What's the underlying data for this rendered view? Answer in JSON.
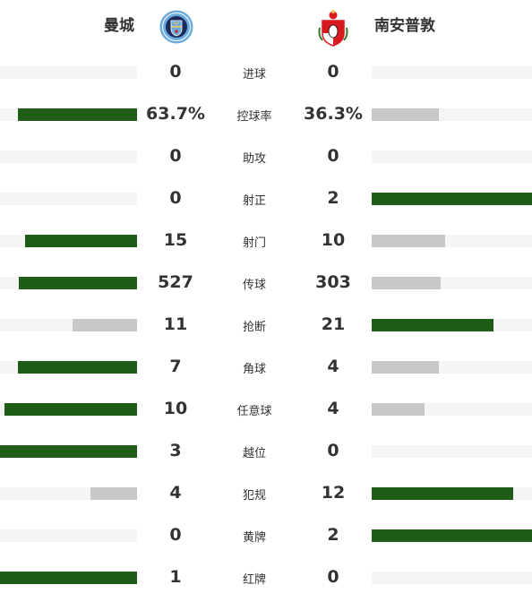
{
  "home": {
    "name": "曼城",
    "crest_icon": "manchester-city-crest-icon",
    "crest_colors": [
      "#6cabdd",
      "#1c2c5b",
      "#ffc659"
    ]
  },
  "away": {
    "name": "南安普敦",
    "crest_icon": "southampton-crest-icon",
    "crest_colors": [
      "#d71920",
      "#ffffff",
      "#130c0e"
    ]
  },
  "colors": {
    "leader_bar": "#1f5c17",
    "trailer_bar": "#c8c8c8",
    "track": "#f5f5f5"
  },
  "stats": [
    {
      "label": "进球",
      "home": "0",
      "away": "0",
      "home_share": 0.0,
      "away_share": 0.0
    },
    {
      "label": "控球率",
      "home": "63.7%",
      "away": "36.3%",
      "home_share": 0.87,
      "away_share": 0.42
    },
    {
      "label": "助攻",
      "home": "0",
      "away": "0",
      "home_share": 0.0,
      "away_share": 0.0
    },
    {
      "label": "射正",
      "home": "0",
      "away": "2",
      "home_share": 0.0,
      "away_share": 1.0
    },
    {
      "label": "射门",
      "home": "15",
      "away": "10",
      "home_share": 0.82,
      "away_share": 0.46
    },
    {
      "label": "传球",
      "home": "527",
      "away": "303",
      "home_share": 0.86,
      "away_share": 0.43
    },
    {
      "label": "抢断",
      "home": "11",
      "away": "21",
      "home_share": 0.47,
      "away_share": 0.76
    },
    {
      "label": "角球",
      "home": "7",
      "away": "4",
      "home_share": 0.87,
      "away_share": 0.42
    },
    {
      "label": "任意球",
      "home": "10",
      "away": "4",
      "home_share": 0.97,
      "away_share": 0.33
    },
    {
      "label": "越位",
      "home": "3",
      "away": "0",
      "home_share": 1.0,
      "away_share": 0.0
    },
    {
      "label": "犯规",
      "home": "4",
      "away": "12",
      "home_share": 0.34,
      "away_share": 0.88
    },
    {
      "label": "黄牌",
      "home": "0",
      "away": "2",
      "home_share": 0.0,
      "away_share": 1.0
    },
    {
      "label": "红牌",
      "home": "1",
      "away": "0",
      "home_share": 1.0,
      "away_share": 0.0
    }
  ]
}
